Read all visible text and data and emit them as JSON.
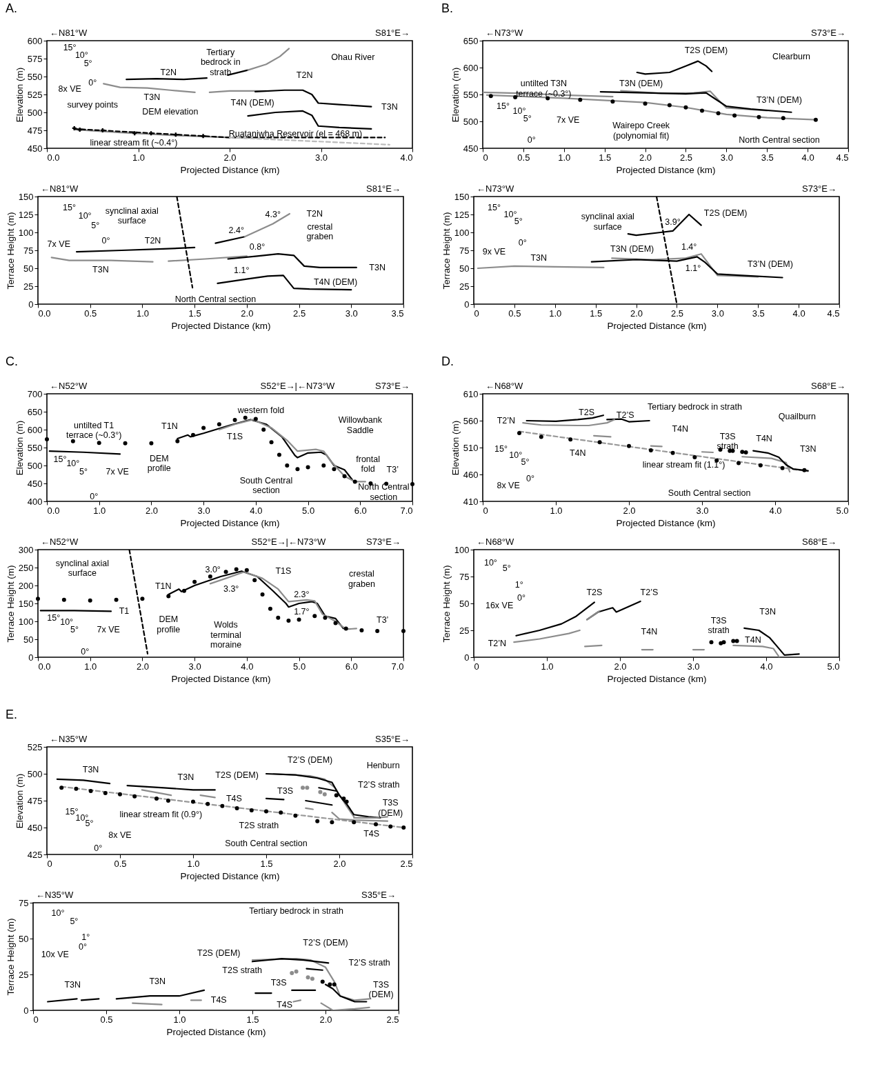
{
  "chart_data": [
    {
      "type": "line",
      "title": "A.",
      "xlabel": "Projected Distance (km)",
      "ylabel": "Elevation (m)",
      "xlim": [
        0,
        4
      ],
      "ylim": [
        450,
        600
      ],
      "xticks": [
        {
          "value": 0,
          "label": "0.0"
        },
        {
          "value": 1,
          "label": "1.0"
        },
        {
          "value": 2,
          "label": "2.0"
        },
        {
          "value": 3,
          "label": "3.0"
        },
        {
          "value": 4,
          "label": "4.0"
        }
      ],
      "yticks": [
        450,
        475,
        500,
        525,
        550,
        575,
        600
      ],
      "series": [
        {
          "color": "#000000",
          "x": [
            0.87,
            1.2,
            1.5,
            1.75
          ],
          "values": [
            546,
            547,
            546,
            548
          ]
        },
        {
          "color": "#000000",
          "x": [
            1.98,
            2.2
          ],
          "values": [
            552,
            559
          ]
        },
        {
          "color": "#8c8c8c",
          "x": [
            2.2,
            2.4,
            2.55,
            2.65
          ],
          "values": [
            559,
            567,
            578,
            589
          ]
        },
        {
          "color": "#8c8c8c",
          "x": [
            0.62,
            0.8,
            1.1,
            1.35,
            1.62
          ],
          "values": [
            540,
            535,
            534,
            531,
            528
          ]
        },
        {
          "color": "#8c8c8c",
          "x": [
            1.78,
            2.0,
            2.4
          ],
          "values": [
            528,
            530,
            530
          ]
        },
        {
          "color": "#000000",
          "x": [
            2.28,
            2.6,
            2.8,
            2.9,
            2.97,
            3.2,
            3.55
          ],
          "values": [
            529,
            531,
            531,
            525,
            513,
            511,
            508
          ]
        },
        {
          "color": "#000000",
          "x": [
            2.2,
            2.5,
            2.8,
            2.9,
            2.97,
            3.2,
            3.55
          ],
          "values": [
            495,
            500,
            502,
            496,
            481,
            479,
            477
          ]
        },
        {
          "color": "#8c8c8c",
          "x": [
            0.3,
            0.8,
            1.4,
            2.0
          ],
          "values": [
            476,
            472,
            468,
            465
          ]
        },
        {
          "color": "#000000",
          "line_style": "dashed",
          "x": [
            0.3,
            2.0,
            3.7
          ],
          "values": [
            477,
            465,
            465
          ]
        },
        {
          "color": "#bbbbbb",
          "line_style": "dashed",
          "x": [
            2.0,
            3.75
          ],
          "values": [
            465,
            455
          ]
        },
        {
          "type": "scatter",
          "marker": "cross",
          "color": "#000000",
          "x": [
            0.3,
            0.36,
            0.61,
            0.96,
            1.14,
            1.41,
            1.71
          ],
          "values": [
            478,
            476,
            475,
            471,
            471,
            469,
            467
          ]
        }
      ],
      "annotations": [
        "←N81°W",
        "S81°E→",
        "15°",
        "10°",
        "5°",
        "0°",
        "8x VE",
        "survey points",
        "DEM elevation",
        "linear stream fit (~0.4°)",
        "Ruataniwha Reservoir (el = 468 m)",
        "T2N",
        "Tertiary\nbedrock in\nstrath",
        "T2N",
        "T3N",
        "T4N (DEM)",
        "T3N",
        "Ohau River"
      ]
    },
    {
      "type": "line",
      "xlabel": "Projected Distance (km)",
      "ylabel": "Terrace Height (m)",
      "xlim": [
        0,
        3.5
      ],
      "ylim": [
        0,
        150
      ],
      "xticks": [
        {
          "value": 0,
          "label": "0.0"
        },
        0.5,
        {
          "value": 1,
          "label": "1.0"
        },
        1.5,
        {
          "value": 2,
          "label": "2.0"
        },
        2.5,
        {
          "value": 3,
          "label": "3.0"
        },
        3.5
      ],
      "yticks": [
        0,
        25,
        50,
        75,
        100,
        125,
        150
      ],
      "series": [
        {
          "color": "#000000",
          "x": [
            0.37,
            0.8,
            1.2,
            1.5
          ],
          "values": [
            73,
            75,
            77,
            79
          ]
        },
        {
          "color": "#8c8c8c",
          "x": [
            0.13,
            0.3,
            0.7,
            1.1
          ],
          "values": [
            65,
            61,
            61,
            59
          ]
        },
        {
          "color": "#8c8c8c",
          "x": [
            1.25,
            1.6,
            2.0
          ],
          "values": [
            60,
            63,
            67
          ]
        },
        {
          "color": "#000000",
          "x": [
            1.7,
            1.98
          ],
          "values": [
            85,
            94
          ]
        },
        {
          "color": "#8c8c8c",
          "x": [
            1.98,
            2.25,
            2.41
          ],
          "values": [
            94,
            112,
            126
          ]
        },
        {
          "color": "#000000",
          "x": [
            1.82,
            2.1,
            2.3,
            2.45,
            2.55,
            2.7,
            3.05
          ],
          "values": [
            63,
            67,
            70,
            68,
            53,
            51,
            51
          ]
        },
        {
          "color": "#000000",
          "x": [
            1.72,
            2.0,
            2.2,
            2.35,
            2.45,
            2.6,
            3.0
          ],
          "values": [
            29,
            35,
            39,
            40,
            22,
            21,
            20
          ]
        },
        {
          "color": "#000000",
          "line_style": "dashed",
          "x": [
            1.33,
            1.48
          ],
          "values": [
            150,
            23
          ]
        }
      ],
      "annotations": [
        "←N81°W",
        "S81°E→",
        "15°",
        "10°",
        "5°",
        "0°",
        "7x VE",
        "synclinal axial\nsurface",
        "2.4°",
        "4.3°",
        "T2N",
        "T2N",
        "T3N",
        "crestal\ngraben",
        "0.8°",
        "T3N",
        "1.1°",
        "T4N (DEM)",
        "North Central section"
      ]
    },
    {
      "type": "line",
      "title": "B.",
      "xlabel": "Projected Distance (km)",
      "ylabel": "Elevation (m)",
      "xlim": [
        0,
        4.5
      ],
      "ylim": [
        450,
        650
      ],
      "xticks": [
        0,
        0.5,
        {
          "value": 1,
          "label": "1.0"
        },
        1.5,
        {
          "value": 2,
          "label": "2.0"
        },
        2.5,
        {
          "value": 3,
          "label": "3.0"
        },
        3.5,
        {
          "value": 4,
          "label": "4.0"
        },
        4.5
      ],
      "yticks": [
        450,
        500,
        550,
        600,
        650
      ],
      "series": [
        {
          "color": "#8c8c8c",
          "x": [
            0,
            0.5,
            1.0,
            1.6
          ],
          "values": [
            554,
            552,
            549,
            546
          ]
        },
        {
          "color": "#8c8c8c",
          "x": [
            0.05,
            1.0,
            2.0,
            2.5,
            3.0,
            3.5,
            4.1
          ],
          "values": [
            549,
            543,
            535,
            526,
            513,
            507,
            503
          ]
        },
        {
          "type": "scatter",
          "marker": "circle",
          "color": "#000000",
          "x": [
            0.1,
            0.4,
            0.8,
            1.2,
            1.6,
            2.0,
            2.3,
            2.5,
            2.7,
            2.9,
            3.1,
            3.4,
            3.7,
            4.1
          ],
          "values": [
            547,
            545,
            543,
            540,
            537,
            533,
            530,
            526,
            520,
            515,
            511,
            508,
            506,
            503
          ]
        },
        {
          "color": "#8c8c8c",
          "x": [
            1.7,
            2.2,
            2.6,
            2.8,
            2.9,
            3.0,
            3.5
          ],
          "values": [
            557,
            552,
            553,
            556,
            540,
            525,
            520
          ]
        },
        {
          "color": "#000000",
          "x": [
            1.45,
            2.0,
            2.5,
            2.75,
            2.85,
            3.0,
            3.3,
            3.8
          ],
          "values": [
            555,
            553,
            551,
            553,
            543,
            528,
            523,
            517
          ]
        },
        {
          "color": "#000000",
          "x": [
            1.9,
            2.0,
            2.3,
            2.5,
            2.65,
            2.75,
            2.82
          ],
          "values": [
            591,
            588,
            591,
            603,
            612,
            603,
            593
          ]
        }
      ],
      "annotations": [
        "←N73°W",
        "S73°E→",
        "untilted T3N\nterrace (~0.3°)",
        "T3N (DEM)",
        "T2S (DEM)",
        "Clearburn",
        "T3’N (DEM)",
        "15°",
        "10°",
        "5°",
        "7x VE",
        "0°",
        "Wairepo Creek\n(polynomial fit)",
        "North Central section"
      ]
    },
    {
      "type": "line",
      "xlabel": "Projected Distance (km)",
      "ylabel": "Terrace Height (m)",
      "xlim": [
        0,
        4.5
      ],
      "ylim": [
        0,
        150
      ],
      "xticks": [
        0,
        0.5,
        {
          "value": 1,
          "label": "1.0"
        },
        1.5,
        {
          "value": 2,
          "label": "2.0"
        },
        2.5,
        {
          "value": 3,
          "label": "3.0"
        },
        3.5,
        {
          "value": 4,
          "label": "4.0"
        },
        4.5
      ],
      "yticks": [
        0,
        25,
        50,
        75,
        100,
        125,
        150
      ],
      "series": [
        {
          "color": "#8c8c8c",
          "x": [
            0.05,
            0.5,
            1.0,
            1.6
          ],
          "values": [
            50,
            53,
            52,
            51
          ]
        },
        {
          "color": "#8c8c8c",
          "x": [
            1.7,
            2.2,
            2.6,
            2.8,
            2.9,
            3.0,
            3.5
          ],
          "values": [
            64,
            62,
            64,
            70,
            55,
            40,
            38
          ]
        },
        {
          "color": "#000000",
          "x": [
            1.45,
            2.0,
            2.5,
            2.75,
            2.85,
            3.0,
            3.3,
            3.8
          ],
          "values": [
            59,
            62,
            60,
            66,
            58,
            42,
            40,
            37
          ]
        },
        {
          "color": "#000000",
          "x": [
            1.9,
            2.0,
            2.3,
            2.45,
            2.65,
            2.8
          ],
          "values": [
            98,
            96,
            100,
            102,
            125,
            110
          ]
        },
        {
          "color": "#000000",
          "line_style": "dashed",
          "x": [
            2.25,
            2.5
          ],
          "values": [
            150,
            0
          ]
        }
      ],
      "annotations": [
        "←N73°W",
        "S73°E→",
        "15°",
        "10°",
        "5°",
        "0°",
        "9x VE",
        "T3N",
        "synclinal axial\nsurface",
        "3.9°",
        "T2S (DEM)",
        "T3N (DEM)",
        "1.4°",
        "1.1°",
        "T3’N (DEM)"
      ]
    },
    {
      "type": "line",
      "title": "C.",
      "xlabel": "Projected Distance (km)",
      "ylabel": "Elevation (m)",
      "xlim": [
        0,
        7
      ],
      "ylim": [
        400,
        700
      ],
      "xticks": [
        {
          "value": 0,
          "label": "0.0"
        },
        {
          "value": 1,
          "label": "1.0"
        },
        {
          "value": 2,
          "label": "2.0"
        },
        {
          "value": 3,
          "label": "3.0"
        },
        {
          "value": 4,
          "label": "4.0"
        },
        {
          "value": 5,
          "label": "5.0"
        },
        {
          "value": 6,
          "label": "6.0"
        },
        {
          "value": 7,
          "label": "7.0"
        }
      ],
      "yticks": [
        400,
        450,
        500,
        550,
        600,
        650,
        700
      ],
      "series": [
        {
          "type": "scatter",
          "marker": "circle",
          "color": "#000000",
          "x": [
            0,
            0.5,
            1.0,
            1.5,
            2.0,
            2.5,
            2.8,
            3.0,
            3.3,
            3.6,
            3.8,
            4.0,
            4.15,
            4.3,
            4.45,
            4.6,
            4.8,
            5.0,
            5.3,
            5.5,
            5.7,
            5.9,
            6.2,
            6.5,
            7.0
          ],
          "values": [
            573,
            568,
            563,
            562,
            562,
            568,
            585,
            605,
            615,
            627,
            633,
            630,
            600,
            565,
            530,
            500,
            490,
            495,
            500,
            490,
            470,
            455,
            450,
            449,
            448
          ]
        },
        {
          "color": "#000000",
          "x": [
            0.05,
            0.7,
            1.4
          ],
          "values": [
            540,
            537,
            532
          ]
        },
        {
          "color": "#000000",
          "x": [
            2.5,
            2.7,
            2.75,
            3.0,
            3.5,
            3.9,
            4.2,
            4.5,
            4.75,
            4.8,
            5.0,
            5.25,
            5.35,
            5.5,
            5.7,
            5.85
          ],
          "values": [
            575,
            585,
            580,
            590,
            612,
            628,
            615,
            580,
            528,
            522,
            535,
            537,
            530,
            500,
            488,
            460
          ]
        },
        {
          "color": "#8c8c8c",
          "x": [
            3.3,
            3.6,
            3.95,
            4.3,
            4.6,
            4.8,
            5.15,
            5.3,
            5.45,
            5.7,
            5.9,
            6.1
          ],
          "values": [
            600,
            615,
            628,
            605,
            570,
            540,
            545,
            540,
            510,
            470,
            455,
            455
          ]
        }
      ],
      "annotations": [
        "←N52°W",
        "S52°E→|←N73°W",
        "S73°E→",
        "untilted T1\nterrace (~0.3°)",
        "T1N",
        "western fold",
        "Willowbank\nSaddle",
        "T1S",
        "DEM\nprofile",
        "frontal\nfold",
        "T3’",
        "South Central\nsection",
        "North Central\nsection",
        "15°",
        "10°",
        "5°",
        "7x VE",
        "0°"
      ]
    },
    {
      "type": "line",
      "xlabel": "Projected Distance (km)",
      "ylabel": "Terrace Height (m)",
      "xlim": [
        0,
        7
      ],
      "ylim": [
        0,
        300
      ],
      "xticks": [
        {
          "value": 0,
          "label": "0.0"
        },
        {
          "value": 1,
          "label": "1.0"
        },
        {
          "value": 2,
          "label": "2.0"
        },
        {
          "value": 3,
          "label": "3.0"
        },
        {
          "value": 4,
          "label": "4.0"
        },
        {
          "value": 5,
          "label": "5.0"
        },
        {
          "value": 6,
          "label": "6.0"
        },
        {
          "value": 7,
          "label": "7.0"
        }
      ],
      "yticks": [
        0,
        50,
        100,
        150,
        200,
        250,
        300
      ],
      "series": [
        {
          "type": "scatter",
          "marker": "circle",
          "color": "#000000",
          "x": [
            0,
            0.5,
            1.0,
            1.5,
            2.0,
            2.5,
            2.8,
            3.0,
            3.3,
            3.6,
            3.8,
            4.0,
            4.15,
            4.3,
            4.45,
            4.6,
            4.8,
            5.0,
            5.3,
            5.5,
            5.7,
            5.9,
            6.2,
            6.5,
            7.0
          ],
          "values": [
            163,
            160,
            158,
            160,
            163,
            170,
            185,
            210,
            225,
            238,
            245,
            243,
            215,
            175,
            135,
            110,
            102,
            105,
            115,
            110,
            95,
            80,
            75,
            73,
            73
          ]
        },
        {
          "color": "#000000",
          "x": [
            0.05,
            0.7,
            1.4
          ],
          "values": [
            130,
            130,
            128
          ]
        },
        {
          "color": "#000000",
          "x": [
            2.5,
            2.7,
            2.75,
            3.0,
            3.5,
            3.9,
            4.2,
            4.5,
            4.75,
            4.8,
            5.0,
            5.25,
            5.35,
            5.5,
            5.7,
            5.85
          ],
          "values": [
            175,
            190,
            183,
            200,
            225,
            240,
            225,
            185,
            150,
            140,
            150,
            155,
            150,
            115,
            108,
            80
          ]
        },
        {
          "color": "#8c8c8c",
          "x": [
            3.3,
            3.6,
            3.95,
            4.3,
            4.6,
            4.8,
            5.15,
            5.3,
            5.45,
            5.7,
            5.9,
            6.1
          ],
          "values": [
            205,
            220,
            238,
            220,
            190,
            155,
            160,
            157,
            120,
            100,
            78,
            80
          ]
        },
        {
          "color": "#000000",
          "line_style": "dashed",
          "x": [
            1.75,
            2.1
          ],
          "values": [
            300,
            10
          ]
        }
      ],
      "annotations": [
        "←N52°W",
        "S52°E→|←N73°W",
        "S73°E→",
        "synclinal axial\nsurface",
        "T1N",
        "3.0°",
        "3.3°",
        "T1S",
        "crestal\ngraben",
        "2.3°",
        "1.7°",
        "T1",
        "DEM\nprofile",
        "Wolds\nterminal\nmoraine",
        "T3’",
        "15°",
        "10°",
        "5°",
        "7x VE",
        "0°"
      ]
    },
    {
      "type": "line",
      "title": "D.",
      "xlabel": "Projected Distance (km)",
      "ylabel": "Elevation (m)",
      "xlim": [
        0,
        5
      ],
      "ylim": [
        410,
        610
      ],
      "xticks": [
        0,
        {
          "value": 1,
          "label": "1.0"
        },
        {
          "value": 2,
          "label": "2.0"
        },
        {
          "value": 3,
          "label": "3.0"
        },
        {
          "value": 4,
          "label": "4.0"
        },
        {
          "value": 5,
          "label": "5.0"
        }
      ],
      "yticks": [
        410,
        460,
        510,
        560,
        610
      ],
      "series": [
        {
          "color": "#000000",
          "x": [
            0.6,
            1.0,
            1.3,
            1.5,
            1.65
          ],
          "values": [
            560,
            559,
            562,
            565,
            570
          ]
        },
        {
          "color": "#000000",
          "x": [
            1.7,
            1.9,
            2.0,
            2.28
          ],
          "values": [
            562,
            563,
            558,
            560
          ]
        },
        {
          "color": "#8c8c8c",
          "x": [
            0.55,
            0.8,
            1.3,
            1.45,
            1.7,
            1.8
          ],
          "values": [
            556,
            552,
            551,
            551,
            556,
            562
          ]
        },
        {
          "color": "#8c8c8c",
          "x": [
            1.52,
            1.75
          ],
          "values": [
            532,
            530
          ]
        },
        {
          "color": "#8c8c8c",
          "x": [
            2.3,
            2.45
          ],
          "values": [
            513,
            512
          ]
        },
        {
          "color": "#8c8c8c",
          "x": [
            3.0,
            3.15
          ],
          "values": [
            502,
            501
          ]
        },
        {
          "color": "#8c8c8c",
          "x": [
            3.55,
            3.95,
            4.15,
            4.2
          ],
          "values": [
            493,
            490,
            482,
            465
          ]
        },
        {
          "color": "#999999",
          "line_style": "dashed",
          "x": [
            0.5,
            4.45
          ],
          "values": [
            540,
            466
          ]
        },
        {
          "type": "scatter",
          "marker": "circle",
          "color": "#000000",
          "x": [
            0.5,
            0.8,
            1.2,
            1.6,
            2.0,
            2.3,
            2.6,
            2.9,
            3.2,
            3.5,
            3.8,
            4.1,
            4.4
          ],
          "values": [
            537,
            530,
            525,
            520,
            513,
            505,
            500,
            492,
            486,
            481,
            477,
            472,
            468
          ]
        },
        {
          "color": "#000000",
          "x": [
            3.7,
            3.9,
            4.05,
            4.15,
            4.25,
            4.45
          ],
          "values": [
            504,
            500,
            492,
            478,
            470,
            467
          ]
        },
        {
          "type": "scatter",
          "marker": "circle",
          "color": "#000000",
          "x": [
            3.25,
            3.38,
            3.42,
            3.55,
            3.6
          ],
          "values": [
            506,
            504,
            504,
            502,
            501
          ]
        }
      ],
      "annotations": [
        "←N68°W",
        "S68°E→",
        "T2S",
        "T2’S",
        "T2’N",
        "Tertiary bedrock in strath",
        "Quailburn",
        "T4N",
        "T3S\nstrath",
        "T4N",
        "T3N",
        "T4N",
        "linear stream fit (1.1°)",
        "South Central section",
        "15°",
        "10°",
        "5°",
        "0°",
        "8x VE"
      ]
    },
    {
      "type": "line",
      "xlabel": "Projected Distance (km)",
      "ylabel": "Terrace Height (m)",
      "xlim": [
        0,
        5
      ],
      "ylim": [
        0,
        100
      ],
      "xticks": [
        0,
        {
          "value": 1,
          "label": "1.0"
        },
        {
          "value": 2,
          "label": "2.0"
        },
        {
          "value": 3,
          "label": "3.0"
        },
        {
          "value": 4,
          "label": "4.0"
        },
        {
          "value": 5,
          "label": "5.0"
        }
      ],
      "yticks": [
        0,
        25,
        50,
        75,
        100
      ],
      "series": [
        {
          "color": "#000000",
          "x": [
            0.58,
            0.9,
            1.2,
            1.4,
            1.65
          ],
          "values": [
            20,
            25,
            31,
            38,
            51
          ]
        },
        {
          "color": "#000000",
          "x": [
            1.55,
            1.7,
            1.9,
            1.95,
            2.28
          ],
          "values": [
            35,
            42,
            46,
            42,
            52
          ]
        },
        {
          "color": "#8c8c8c",
          "x": [
            0.55,
            0.9,
            1.3,
            1.45
          ],
          "values": [
            14,
            17,
            22,
            25
          ]
        },
        {
          "color": "#8c8c8c",
          "x": [
            1.55,
            1.72
          ],
          "values": [
            35,
            43
          ]
        },
        {
          "color": "#8c8c8c",
          "x": [
            1.52,
            1.75
          ],
          "values": [
            10,
            11
          ]
        },
        {
          "color": "#8c8c8c",
          "x": [
            2.3,
            2.45
          ],
          "values": [
            7,
            7
          ]
        },
        {
          "color": "#8c8c8c",
          "x": [
            3.0,
            3.15
          ],
          "values": [
            7,
            7
          ]
        },
        {
          "color": "#8c8c8c",
          "x": [
            3.55,
            3.95,
            4.1,
            4.18
          ],
          "values": [
            11,
            10,
            8,
            0
          ]
        },
        {
          "color": "#000000",
          "x": [
            3.7,
            3.9,
            4.05,
            4.15,
            4.25,
            4.45
          ],
          "values": [
            27,
            25,
            18,
            10,
            2,
            3
          ]
        },
        {
          "type": "scatter",
          "marker": "circle",
          "color": "#000000",
          "x": [
            3.25,
            3.38,
            3.42,
            3.55,
            3.6
          ],
          "values": [
            14,
            13,
            14,
            15,
            15
          ]
        }
      ],
      "annotations": [
        "←N68°W",
        "S68°E→",
        "10°",
        "5°",
        "1°",
        "0°",
        "16x VE",
        "T2S",
        "T2’S",
        "T2’N",
        "T4N",
        "T3S\nstrath",
        "T3N",
        "T4N"
      ]
    },
    {
      "type": "line",
      "title": "E.",
      "xlabel": "Projected Distance (km)",
      "ylabel": "Elevation (m)",
      "xlim": [
        0,
        2.5
      ],
      "ylim": [
        425,
        525
      ],
      "xticks": [
        0,
        0.5,
        {
          "value": 1,
          "label": "1.0"
        },
        1.5,
        {
          "value": 2,
          "label": "2.0"
        },
        2.5
      ],
      "yticks": [
        425,
        450,
        475,
        500,
        525
      ],
      "series": [
        {
          "color": "#000000",
          "x": [
            0.07,
            0.25,
            0.43
          ],
          "values": [
            495,
            494,
            491
          ]
        },
        {
          "color": "#000000",
          "x": [
            0.55,
            0.8,
            1.0,
            1.15
          ],
          "values": [
            489,
            487,
            485,
            485
          ]
        },
        {
          "color": "#8c8c8c",
          "x": [
            0.65,
            0.85
          ],
          "values": [
            485,
            480
          ]
        },
        {
          "color": "#8c8c8c",
          "x": [
            1.05,
            1.15
          ],
          "values": [
            480,
            478
          ]
        },
        {
          "color": "#999999",
          "line_style": "dashed",
          "x": [
            0.1,
            2.44
          ],
          "values": [
            488,
            450
          ]
        },
        {
          "type": "scatter",
          "marker": "circle",
          "color": "#000000",
          "x": [
            0.1,
            0.2,
            0.3,
            0.4,
            0.5,
            0.6,
            0.75,
            0.83,
            1.0,
            1.1,
            1.2,
            1.3,
            1.4,
            1.5,
            1.6,
            1.7,
            1.85,
            1.95,
            2.1,
            2.25,
            2.35,
            2.44
          ],
          "values": [
            487,
            486,
            484,
            482,
            481,
            479,
            477,
            475,
            474,
            472,
            470,
            468,
            466,
            465,
            464,
            461,
            456,
            455,
            455,
            453,
            451,
            450
          ]
        },
        {
          "color": "#8c8c8c",
          "x": [
            1.55,
            1.8,
            1.9,
            1.97,
            2.05,
            2.1
          ],
          "values": [
            500,
            498,
            495,
            487,
            470,
            460
          ]
        },
        {
          "color": "#000000",
          "x": [
            1.5,
            1.7,
            1.85,
            1.95,
            2.0,
            2.05,
            2.1,
            2.2,
            2.28
          ],
          "values": [
            500,
            499,
            496,
            492,
            480,
            472,
            462,
            460,
            459
          ]
        },
        {
          "color": "#000000",
          "x": [
            1.86,
            1.98
          ],
          "values": [
            487,
            484
          ]
        },
        {
          "color": "#000000",
          "x": [
            1.5,
            1.62
          ],
          "values": [
            477,
            476
          ]
        },
        {
          "color": "#000000",
          "x": [
            1.77,
            1.95
          ],
          "values": [
            475,
            471
          ]
        },
        {
          "color": "#8c8c8c",
          "x": [
            1.77,
            1.82
          ],
          "values": [
            468,
            467
          ]
        },
        {
          "color": "#8c8c8c",
          "x": [
            1.95,
            2.0,
            2.1,
            2.33
          ],
          "values": [
            464,
            458,
            457,
            456
          ]
        },
        {
          "color": "#8c8c8c",
          "x": [
            2.1,
            2.25,
            2.33
          ],
          "values": [
            459,
            459,
            460
          ]
        },
        {
          "type": "scatter",
          "marker": "circle",
          "color": "#8c8c8c",
          "x": [
            1.75,
            1.78,
            1.87,
            1.9
          ],
          "values": [
            487,
            487,
            483,
            481
          ]
        },
        {
          "type": "scatter",
          "marker": "circle",
          "color": "#000000",
          "x": [
            1.98,
            2.03,
            2.05
          ],
          "values": [
            480,
            477,
            474
          ]
        }
      ],
      "annotations": [
        "←N35°W",
        "S35°E→",
        "T3N",
        "T3N",
        "T2S (DEM)",
        "T2’S (DEM)",
        "Henburn",
        "T2’S strath",
        "T3S\n(DEM)",
        "T3S",
        "T4S",
        "linear stream fit (0.9°)",
        "T2S strath",
        "T4S",
        "South Central section",
        "15°",
        "10°",
        "5°",
        "0°",
        "8x VE"
      ]
    },
    {
      "type": "line",
      "xlabel": "Projected Distance (km)",
      "ylabel": "Terrace Height (m)",
      "xlim": [
        0,
        2.5
      ],
      "ylim": [
        0,
        75
      ],
      "xticks": [
        0,
        0.5,
        {
          "value": 1,
          "label": "1.0"
        },
        1.5,
        {
          "value": 2,
          "label": "2.0"
        },
        2.5
      ],
      "yticks": [
        0,
        25,
        50,
        75
      ],
      "series": [
        {
          "color": "#000000",
          "x": [
            0.1,
            0.3
          ],
          "values": [
            6,
            8
          ]
        },
        {
          "color": "#000000",
          "x": [
            0.33,
            0.45
          ],
          "values": [
            7,
            8
          ]
        },
        {
          "color": "#000000",
          "x": [
            0.57,
            0.8,
            1.0,
            1.17
          ],
          "values": [
            8,
            10,
            10,
            14
          ]
        },
        {
          "color": "#8c8c8c",
          "x": [
            0.68,
            0.88
          ],
          "values": [
            5,
            4
          ]
        },
        {
          "color": "#8c8c8c",
          "x": [
            1.08,
            1.15
          ],
          "values": [
            7,
            7
          ]
        },
        {
          "color": "#8c8c8c",
          "x": [
            1.78,
            1.83
          ],
          "values": [
            6,
            7
          ]
        },
        {
          "color": "#8c8c8c",
          "x": [
            1.5,
            1.8,
            1.9,
            2.0,
            2.06,
            2.1,
            2.2,
            2.3
          ],
          "values": [
            35,
            36,
            35,
            30,
            20,
            10,
            7,
            8
          ]
        },
        {
          "color": "#000000",
          "x": [
            1.5,
            1.7,
            1.85,
            2.02
          ],
          "values": [
            34,
            36,
            35,
            33
          ]
        },
        {
          "color": "#000000",
          "x": [
            1.87,
            1.98
          ],
          "values": [
            29,
            28
          ]
        },
        {
          "color": "#000000",
          "x": [
            2.0,
            2.05,
            2.1,
            2.2,
            2.28
          ],
          "values": [
            18,
            15,
            10,
            6,
            6
          ]
        },
        {
          "color": "#000000",
          "x": [
            1.52,
            1.63
          ],
          "values": [
            12,
            12
          ]
        },
        {
          "color": "#000000",
          "x": [
            1.77,
            1.93
          ],
          "values": [
            14,
            14
          ]
        },
        {
          "color": "#8c8c8c",
          "x": [
            1.97,
            2.05,
            2.2,
            2.3
          ],
          "values": [
            5,
            0,
            1,
            2
          ]
        },
        {
          "type": "scatter",
          "marker": "circle",
          "color": "#8c8c8c",
          "x": [
            1.77,
            1.8,
            1.88,
            1.91
          ],
          "values": [
            26,
            27,
            23,
            22
          ]
        },
        {
          "type": "scatter",
          "marker": "circle",
          "color": "#000000",
          "x": [
            1.98,
            2.03,
            2.06
          ],
          "values": [
            20,
            18,
            18
          ]
        }
      ],
      "annotations": [
        "←N35°W",
        "S35°E→",
        "10°",
        "5°",
        "1°",
        "0°",
        "10x VE",
        "Tertiary bedrock in strath",
        "T2S (DEM)",
        "T2’S (DEM)",
        "T2S strath",
        "T2’S strath",
        "T3N",
        "T3N",
        "T3S",
        "T3S\n(DEM)",
        "T4S",
        "T4S"
      ]
    }
  ]
}
